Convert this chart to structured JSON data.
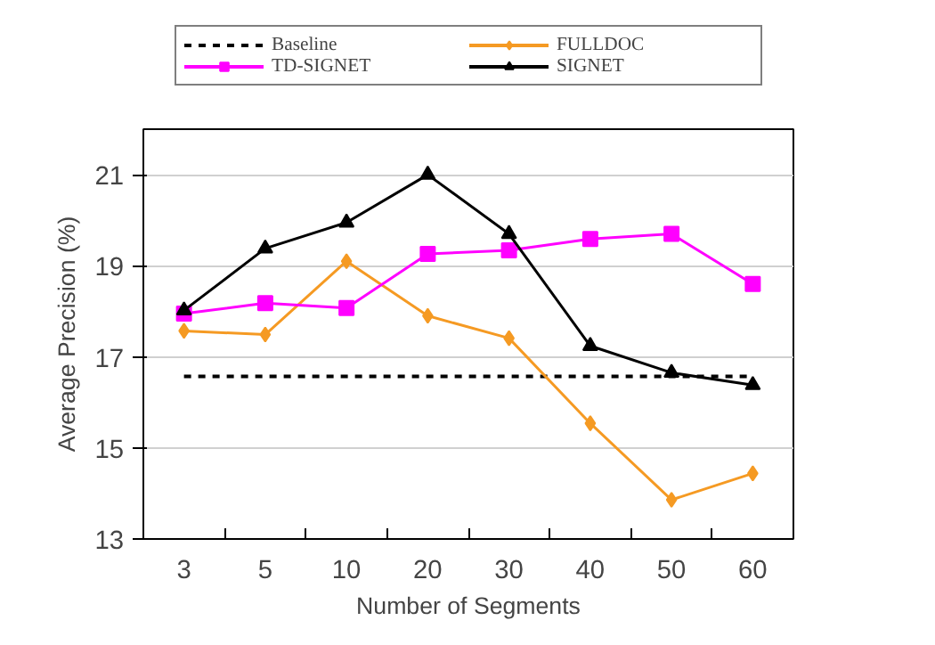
{
  "chart_data": {
    "type": "line",
    "xlabel": "Number of Segments",
    "ylabel": "Average Precision (%)",
    "categories": [
      "3",
      "5",
      "10",
      "20",
      "30",
      "40",
      "50",
      "60"
    ],
    "ylim": [
      13,
      22
    ],
    "yticks": [
      13,
      15,
      17,
      19,
      21
    ],
    "grid": "y",
    "legend": "top",
    "series": [
      {
        "name": "Baseline",
        "color": "#000000",
        "marker": "none",
        "line_style": "dashed",
        "values": [
          16.57,
          16.57,
          16.57,
          16.57,
          16.57,
          16.57,
          16.57,
          16.57
        ]
      },
      {
        "name": "FULLDOC",
        "color": "#f59a23",
        "marker": "diamond",
        "values": [
          17.57,
          17.49,
          19.1,
          17.9,
          17.41,
          15.54,
          13.86,
          14.44
        ]
      },
      {
        "name": "TD-SIGNET",
        "color": "#ff00ff",
        "marker": "square",
        "values": [
          17.95,
          18.18,
          18.07,
          19.26,
          19.34,
          19.59,
          19.7,
          18.6
        ]
      },
      {
        "name": "SIGNET",
        "color": "#000000",
        "marker": "triangle",
        "values": [
          18.02,
          19.38,
          19.95,
          21.0,
          19.7,
          17.24,
          16.65,
          16.38
        ]
      }
    ]
  }
}
